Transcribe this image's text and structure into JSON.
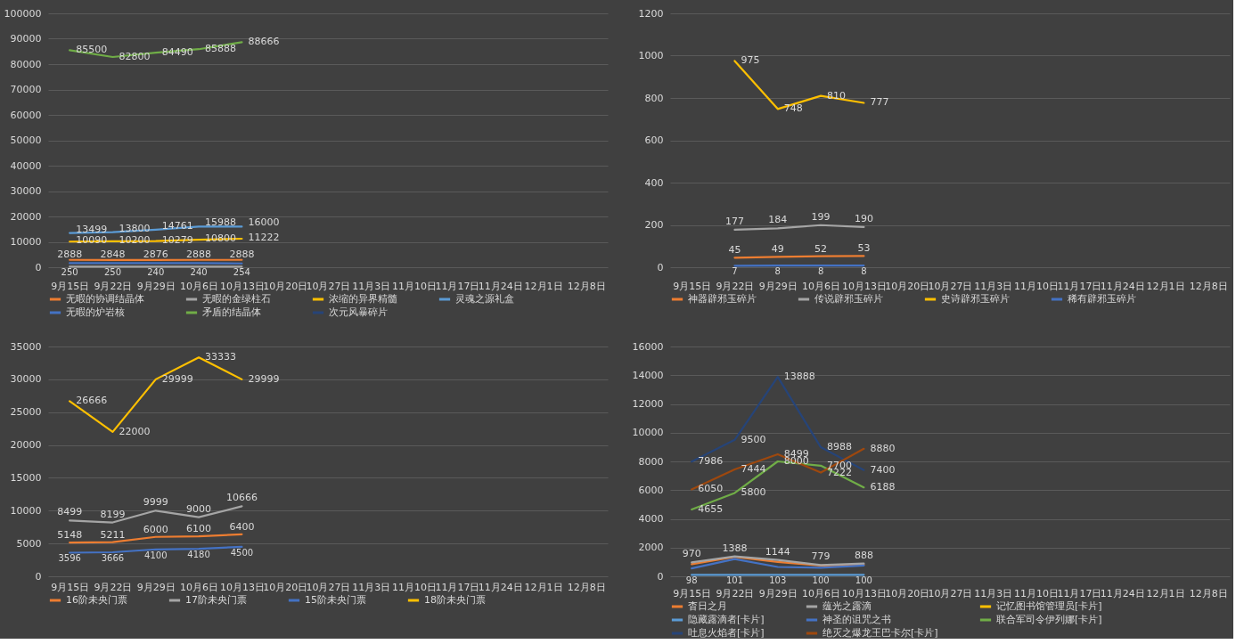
{
  "chart_data": [
    {
      "type": "line",
      "categories": [
        "9月15日",
        "9月22日",
        "9月29日",
        "10月6日",
        "10月13日",
        "10月20日",
        "10月27日",
        "11月3日",
        "11月10日",
        "11月17日",
        "11月24日",
        "12月1日",
        "12月8日"
      ],
      "series": [
        {
          "name": "无暇的协调结晶体",
          "color": "#ed7d31",
          "values": [
            2888,
            2848,
            2876,
            2888,
            2888,
            null,
            null,
            null,
            null,
            null,
            null,
            null,
            null
          ],
          "value_labels": [
            "2888",
            "2848",
            "2876",
            "2888",
            "2888",
            null,
            null,
            null,
            null,
            null,
            null,
            null,
            null
          ]
        },
        {
          "name": "无暇的金绿柱石",
          "color": "#a5a5a5",
          "values": [
            250,
            250,
            240,
            240,
            254,
            null,
            null,
            null,
            null,
            null,
            null,
            null,
            null
          ],
          "value_labels": [
            "250",
            "250",
            "240",
            "240",
            "254",
            null,
            null,
            null,
            null,
            null,
            null,
            null,
            null
          ]
        },
        {
          "name": "浓缩的异界精髓",
          "color": "#ffc000",
          "values": [
            10090,
            10200,
            10279,
            10800,
            11222,
            null,
            null,
            null,
            null,
            null,
            null,
            null,
            null
          ],
          "value_labels": [
            "10090",
            "10200",
            "10279",
            "10800",
            "11222",
            null,
            null,
            null,
            null,
            null,
            null,
            null,
            null
          ]
        },
        {
          "name": "灵魂之源礼盒",
          "color": "#5b9bd5",
          "values": [
            13499,
            13800,
            14761,
            15988,
            16000,
            null,
            null,
            null,
            null,
            null,
            null,
            null,
            null
          ],
          "value_labels": [
            "13499",
            "13800",
            "14761",
            "15988",
            "16000",
            null,
            null,
            null,
            null,
            null,
            null,
            null,
            null
          ]
        },
        {
          "name": "无暇的炉岩核",
          "color": "#4472c4",
          "values": [
            1600,
            1600,
            1600,
            1600,
            1500,
            null,
            null,
            null,
            null,
            null,
            null,
            null,
            null
          ]
        },
        {
          "name": "矛盾的结晶体",
          "color": "#70ad47",
          "values": [
            85500,
            82800,
            84490,
            85888,
            88666,
            null,
            null,
            null,
            null,
            null,
            null,
            null,
            null
          ],
          "value_labels": [
            "85500",
            "82800",
            "84490",
            "85888",
            "88666",
            null,
            null,
            null,
            null,
            null,
            null,
            null,
            null
          ]
        },
        {
          "name": "次元风暴碎片",
          "color": "#264478",
          "values": [
            null,
            null,
            null,
            null,
            null,
            null,
            null,
            null,
            null,
            null,
            null,
            null,
            null
          ]
        }
      ],
      "ylim": [
        0,
        100000
      ],
      "yticks": [
        0,
        10000,
        20000,
        30000,
        40000,
        50000,
        60000,
        70000,
        80000,
        90000,
        100000
      ],
      "grid": "y",
      "legend": "bottom"
    },
    {
      "type": "line",
      "categories": [
        "9月15日",
        "9月22日",
        "9月29日",
        "10月6日",
        "10月13日",
        "10月20日",
        "10月27日",
        "11月3日",
        "11月10日",
        "11月17日",
        "11月24日",
        "12月1日",
        "12月8日"
      ],
      "series": [
        {
          "name": "神器辟邪玉碎片",
          "color": "#ed7d31",
          "values": [
            null,
            45,
            49,
            52,
            53,
            null,
            null,
            null,
            null,
            null,
            null,
            null,
            null
          ]
        },
        {
          "name": "传说辟邪玉碎片",
          "color": "#a5a5a5",
          "values": [
            null,
            177,
            184,
            199,
            190,
            null,
            null,
            null,
            null,
            null,
            null,
            null,
            null
          ]
        },
        {
          "name": "史诗辟邪玉碎片",
          "color": "#ffc000",
          "values": [
            null,
            975,
            748,
            810,
            777,
            null,
            null,
            null,
            null,
            null,
            null,
            null,
            null
          ]
        },
        {
          "name": "稀有辟邪玉碎片",
          "color": "#4472c4",
          "values": [
            null,
            7,
            8,
            8,
            8,
            null,
            null,
            null,
            null,
            null,
            null,
            null,
            null
          ]
        }
      ],
      "ylim": [
        0,
        1200
      ],
      "yticks": [
        0,
        200,
        400,
        600,
        800,
        1000,
        1200
      ],
      "grid": "y",
      "legend": "bottom",
      "data_labels": true
    },
    {
      "type": "line",
      "categories": [
        "9月15日",
        "9月22日",
        "9月29日",
        "10月6日",
        "10月13日",
        "10月20日",
        "10月27日",
        "11月3日",
        "11月10日",
        "11月17日",
        "11月24日",
        "12月1日",
        "12月8日"
      ],
      "series": [
        {
          "name": "16阶未央门票",
          "color": "#ed7d31",
          "values": [
            5148,
            5211,
            6000,
            6100,
            6400,
            null,
            null,
            null,
            null,
            null,
            null,
            null,
            null
          ]
        },
        {
          "name": "17阶未央门票",
          "color": "#a5a5a5",
          "values": [
            8499,
            8199,
            9999,
            9000,
            10666,
            null,
            null,
            null,
            null,
            null,
            null,
            null,
            null
          ]
        },
        {
          "name": "15阶未央门票",
          "color": "#4472c4",
          "values": [
            3596,
            3666,
            4100,
            4180,
            4500,
            null,
            null,
            null,
            null,
            null,
            null,
            null,
            null
          ]
        },
        {
          "name": "18阶未央门票",
          "color": "#ffc000",
          "values": [
            26666,
            22000,
            29999,
            33333,
            29999,
            null,
            null,
            null,
            null,
            null,
            null,
            null,
            null
          ]
        }
      ],
      "ylim": [
        0,
        35000
      ],
      "yticks": [
        0,
        5000,
        10000,
        15000,
        20000,
        25000,
        30000,
        35000
      ],
      "grid": "y",
      "legend": "bottom",
      "data_labels": true
    },
    {
      "type": "line",
      "categories": [
        "9月15日",
        "9月22日",
        "9月29日",
        "10月6日",
        "10月13日",
        "10月20日",
        "10月27日",
        "11月3日",
        "11月10日",
        "11月17日",
        "11月24日",
        "12月1日",
        "12月8日"
      ],
      "series": [
        {
          "name": "杳日之月",
          "color": "#ed7d31",
          "values": [
            850,
            1350,
            1000,
            750,
            800,
            null,
            null,
            null,
            null,
            null,
            null,
            null,
            null
          ]
        },
        {
          "name": "蕴光之露滴",
          "color": "#a5a5a5",
          "values": [
            970,
            1388,
            1144,
            779,
            888,
            null,
            null,
            null,
            null,
            null,
            null,
            null,
            null
          ],
          "value_labels": [
            "970",
            "1388",
            "1144",
            "779",
            "888",
            null,
            null,
            null,
            null,
            null,
            null,
            null,
            null
          ]
        },
        {
          "name": "记忆图书馆管理员[卡片]",
          "color": "#ffc000",
          "values": [
            null,
            null,
            null,
            null,
            null,
            null,
            null,
            null,
            null,
            null,
            null,
            null,
            null
          ]
        },
        {
          "name": "隐藏露滴者[卡片]",
          "color": "#5b9bd5",
          "values": [
            98,
            101,
            103,
            100,
            100,
            null,
            null,
            null,
            null,
            null,
            null,
            null,
            null
          ],
          "value_labels": [
            "98",
            "101",
            "103",
            "100",
            "100",
            null,
            null,
            null,
            null,
            null,
            null,
            null,
            null
          ]
        },
        {
          "name": "神圣的诅咒之书",
          "color": "#4472c4",
          "values": [
            550,
            1200,
            650,
            600,
            750,
            null,
            null,
            null,
            null,
            null,
            null,
            null,
            null
          ]
        },
        {
          "name": "联合军司令伊列娜[卡片]",
          "color": "#70ad47",
          "values": [
            4655,
            5800,
            8000,
            7700,
            6188,
            null,
            null,
            null,
            null,
            null,
            null,
            null,
            null
          ],
          "value_labels": [
            "4655",
            "5800",
            "8000",
            "7700",
            "6188",
            null,
            null,
            null,
            null,
            null,
            null,
            null,
            null
          ]
        },
        {
          "name": "吐息火焰者[卡片]",
          "color": "#264478",
          "values": [
            7986,
            9500,
            13888,
            8988,
            7400,
            null,
            null,
            null,
            null,
            null,
            null,
            null,
            null
          ],
          "value_labels": [
            "7986",
            "9500",
            "13888",
            "8988",
            "7400",
            null,
            null,
            null,
            null,
            null,
            null,
            null,
            null
          ]
        },
        {
          "name": "绝灭之爆龙王巴卡尔[卡片]",
          "color": "#9e480e",
          "values": [
            6050,
            7444,
            8499,
            7222,
            8880,
            null,
            null,
            null,
            null,
            null,
            null,
            null,
            null
          ],
          "value_labels": [
            "6050",
            "7444",
            "8499",
            "7222",
            "8880",
            null,
            null,
            null,
            null,
            null,
            null,
            null,
            null
          ]
        }
      ],
      "ylim": [
        0,
        16000
      ],
      "yticks": [
        0,
        2000,
        4000,
        6000,
        8000,
        10000,
        12000,
        14000,
        16000
      ],
      "grid": "y",
      "legend": "bottom"
    }
  ]
}
